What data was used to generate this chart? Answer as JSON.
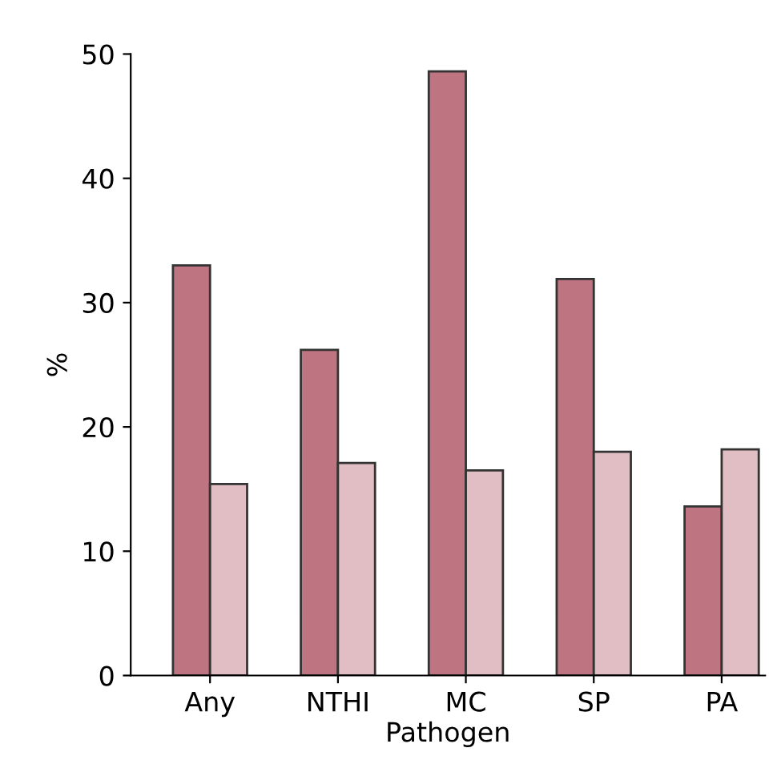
{
  "chart_data": {
    "type": "bar",
    "xlabel": "Pathogen",
    "ylabel": "%",
    "categories": [
      "Any",
      "NTHI",
      "MC",
      "SP",
      "PA"
    ],
    "series": [
      {
        "color": "#bf7482",
        "values": [
          33.0,
          26.2,
          48.6,
          31.9,
          13.6
        ]
      },
      {
        "color": "#e0bec3",
        "values": [
          15.4,
          17.1,
          16.5,
          18.0,
          18.2
        ]
      }
    ],
    "ylim": [
      0,
      50
    ],
    "yticks": [
      0,
      10,
      20,
      30,
      40,
      50
    ],
    "grid": false,
    "legend": false
  }
}
